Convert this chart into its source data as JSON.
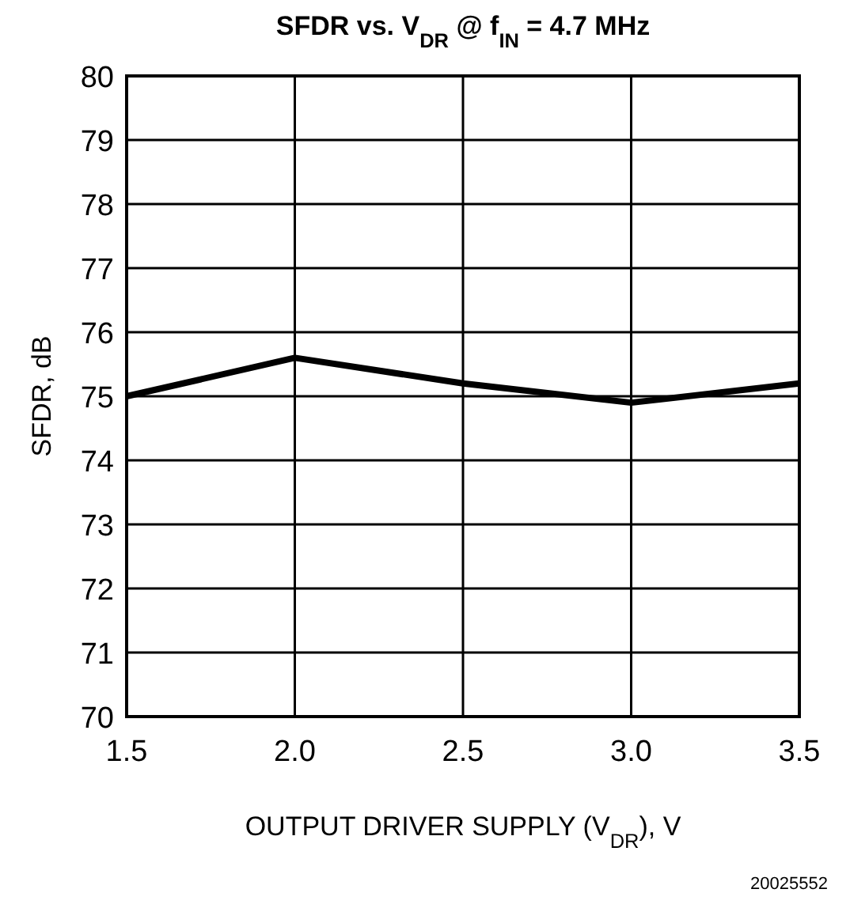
{
  "chart_data": {
    "type": "line",
    "title": "SFDR vs. V$_{DR}$ @ f$_{IN}$ = 4.7 MHz",
    "xlabel": "OUTPUT DRIVER SUPPLY (V$_{DR}$), V",
    "ylabel": "SFDR, dB",
    "annotations": [
      "20025552"
    ],
    "x": [
      1.5,
      2.0,
      2.5,
      3.0,
      3.5
    ],
    "series": [
      {
        "color": "#000000",
        "values": [
          75.0,
          75.6,
          75.2,
          74.9,
          75.2
        ]
      }
    ],
    "xlim": [
      1.5,
      3.5
    ],
    "xticks": [
      {
        "value": 1.5,
        "label": "1.5"
      },
      {
        "value": 2.0,
        "label": "2.0"
      },
      {
        "value": 2.5,
        "label": "2.5"
      },
      {
        "value": 3.0,
        "label": "3.0"
      },
      {
        "value": 3.5,
        "label": "3.5"
      }
    ],
    "ylim": [
      70,
      80
    ],
    "yticks": [
      70,
      71,
      72,
      73,
      74,
      75,
      76,
      77,
      78,
      79,
      80
    ],
    "grid": true,
    "line_style": "solid",
    "marker": "none"
  }
}
